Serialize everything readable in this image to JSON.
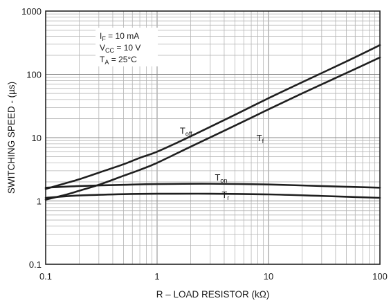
{
  "chart_data": {
    "type": "line",
    "title": "",
    "xlabel": "R – LOAD RESISTOR (kΩ)",
    "ylabel": "SWITCHING SPEED - (µs)",
    "xscale": "log",
    "yscale": "log",
    "xlim": [
      0.1,
      100
    ],
    "ylim": [
      0.1,
      1000
    ],
    "grid": true,
    "x_ticks": [
      {
        "value": 0.1,
        "label": "0.1"
      },
      {
        "value": 1,
        "label": "1"
      },
      {
        "value": 10,
        "label": "10"
      },
      {
        "value": 100,
        "label": "100"
      }
    ],
    "y_ticks": [
      {
        "value": 0.1,
        "label": "0.1"
      },
      {
        "value": 1,
        "label": "1"
      },
      {
        "value": 10,
        "label": "10"
      },
      {
        "value": 100,
        "label": "100"
      },
      {
        "value": 1000,
        "label": "1000"
      }
    ],
    "conditions": [
      {
        "main": "I",
        "sub": "F",
        "rest": " = 10 mA"
      },
      {
        "main": "V",
        "sub": "CC",
        "rest": " = 10 V"
      },
      {
        "main": "T",
        "sub": "A",
        "rest": " = 25°C"
      }
    ],
    "series": [
      {
        "name": "T_off",
        "label_main": "T",
        "label_sub": "off",
        "label_at": [
          1.6,
          11.5
        ],
        "points": [
          [
            0.1,
            1.55
          ],
          [
            0.15,
            1.9
          ],
          [
            0.2,
            2.2
          ],
          [
            0.3,
            2.8
          ],
          [
            0.5,
            3.8
          ],
          [
            0.7,
            4.8
          ],
          [
            1,
            6
          ],
          [
            2,
            10.5
          ],
          [
            5,
            23
          ],
          [
            10,
            42
          ],
          [
            20,
            75
          ],
          [
            50,
            160
          ],
          [
            100,
            290
          ]
        ]
      },
      {
        "name": "T_f",
        "label_main": "T",
        "label_sub": "f",
        "label_at": [
          7.8,
          8.8
        ],
        "points": [
          [
            0.1,
            1.05
          ],
          [
            0.15,
            1.25
          ],
          [
            0.2,
            1.45
          ],
          [
            0.3,
            1.8
          ],
          [
            0.5,
            2.5
          ],
          [
            0.7,
            3.1
          ],
          [
            1,
            4
          ],
          [
            2,
            7.2
          ],
          [
            5,
            15.5
          ],
          [
            10,
            28
          ],
          [
            20,
            50
          ],
          [
            50,
            105
          ],
          [
            100,
            185
          ]
        ]
      },
      {
        "name": "T_on",
        "label_main": "T",
        "label_sub": "on",
        "label_at": [
          3.3,
          2.1
        ],
        "points": [
          [
            0.1,
            1.62
          ],
          [
            0.2,
            1.72
          ],
          [
            0.5,
            1.8
          ],
          [
            1,
            1.85
          ],
          [
            3,
            1.87
          ],
          [
            10,
            1.82
          ],
          [
            30,
            1.72
          ],
          [
            100,
            1.62
          ]
        ]
      },
      {
        "name": "T_r",
        "label_main": "T",
        "label_sub": "r",
        "label_at": [
          3.8,
          1.12
        ],
        "points": [
          [
            0.1,
            1.12
          ],
          [
            0.2,
            1.22
          ],
          [
            0.5,
            1.28
          ],
          [
            1,
            1.3
          ],
          [
            3,
            1.3
          ],
          [
            10,
            1.27
          ],
          [
            30,
            1.2
          ],
          [
            100,
            1.12
          ]
        ]
      }
    ]
  }
}
